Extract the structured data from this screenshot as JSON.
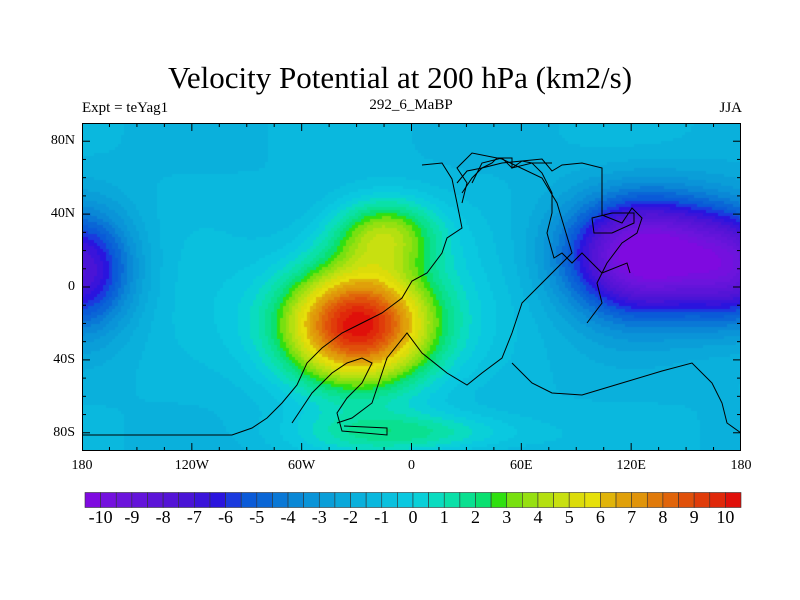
{
  "chart_data": {
    "type": "heatmap",
    "title": "Velocity Potential at 200 hPa (km2/s)",
    "left_string": "Expt = teYag1",
    "center_string": "292_6_MaBP",
    "right_string": "JJA",
    "xlim": [
      -180,
      180
    ],
    "ylim": [
      -90,
      90
    ],
    "x_ticks": [
      {
        "v": -180,
        "label": "180"
      },
      {
        "v": -120,
        "label": "120W"
      },
      {
        "v": -60,
        "label": "60W"
      },
      {
        "v": 0,
        "label": "0"
      },
      {
        "v": 60,
        "label": "60E"
      },
      {
        "v": 120,
        "label": "120E"
      },
      {
        "v": 180,
        "label": "180"
      }
    ],
    "y_ticks": [
      {
        "v": 80,
        "label": "80N"
      },
      {
        "v": 40,
        "label": "40N"
      },
      {
        "v": 0,
        "label": "0"
      },
      {
        "v": -40,
        "label": "40S"
      },
      {
        "v": -80,
        "label": "80S"
      }
    ],
    "contour_levels": {
      "min": -10,
      "max": 10,
      "step": 0.5
    },
    "colorbar_labels": [
      "-10",
      "-9",
      "-8",
      "-7",
      "-6",
      "-5",
      "-4",
      "-3",
      "-2",
      "-1",
      "0",
      "1",
      "2",
      "3",
      "4",
      "5",
      "6",
      "7",
      "8",
      "9",
      "10"
    ],
    "colors": [
      "#7f0ae0",
      "#7410de",
      "#6c14dc",
      "#6414da",
      "#5c14d8",
      "#5414d6",
      "#4a14d6",
      "#3a14da",
      "#2a14de",
      "#1a3ade",
      "#0a5ad8",
      "#0a66d6",
      "#0a78d6",
      "#0a88d6",
      "#0a94d8",
      "#0a9ed8",
      "#0aa8da",
      "#0ab0dc",
      "#0ab8de",
      "#0ac0de",
      "#0ac8e0",
      "#0ad0d8",
      "#0adcc0",
      "#0ae0a8",
      "#0ae090",
      "#0ae070",
      "#30e010",
      "#78e010",
      "#96e010",
      "#b4e010",
      "#c8e010",
      "#dcdc0a",
      "#e6e00a",
      "#e0b40a",
      "#e0a00a",
      "#e0940a",
      "#e07a0a",
      "#e0640a",
      "#e0500a",
      "#e03c0a",
      "#e0280a",
      "#e0100a"
    ],
    "field_model": {
      "base": -1.5,
      "extrema": [
        {
          "lon": -30,
          "lat": -20,
          "amp": 12.5,
          "slon": 42,
          "slat": 34
        },
        {
          "lon": -15,
          "lat": 30,
          "amp": 5,
          "slon": 30,
          "slat": 20
        },
        {
          "lon": 0,
          "lat": -80,
          "amp": 3,
          "slon": 60,
          "slat": 12
        },
        {
          "lon": 130,
          "lat": 18,
          "amp": -9,
          "slon": 45,
          "slat": 32
        },
        {
          "lon": -180,
          "lat": 10,
          "amp": -5.5,
          "slon": 28,
          "slat": 32
        },
        {
          "lon": 180,
          "lat": 10,
          "amp": -5.5,
          "slon": 28,
          "slat": 32
        }
      ]
    }
  }
}
